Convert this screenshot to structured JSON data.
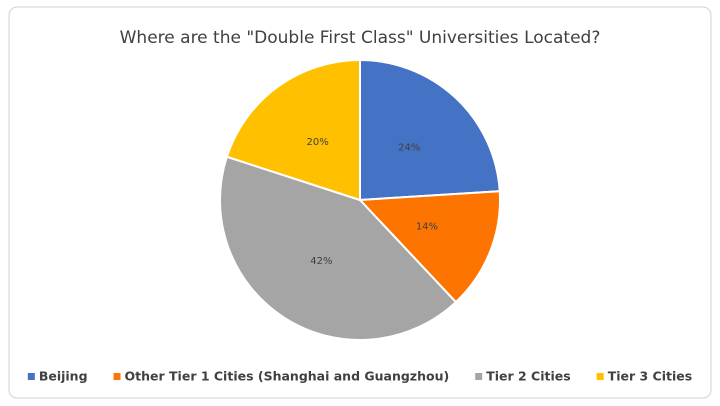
{
  "chart_data": {
    "type": "pie",
    "title": "Where are the \"Double First Class\" Universities Located?",
    "categories": [
      "Beijing",
      "Other Tier 1 Cities (Shanghai and Guangzhou)",
      "Tier 2 Cities",
      "Tier 3 Cities"
    ],
    "values": [
      24,
      14,
      42,
      20
    ],
    "value_labels": [
      "24%",
      "14%",
      "42%",
      "20%"
    ],
    "colors": [
      "#4472c4",
      "#fd7400",
      "#a5a5a5",
      "#ffc000"
    ],
    "legend": "bottom"
  }
}
